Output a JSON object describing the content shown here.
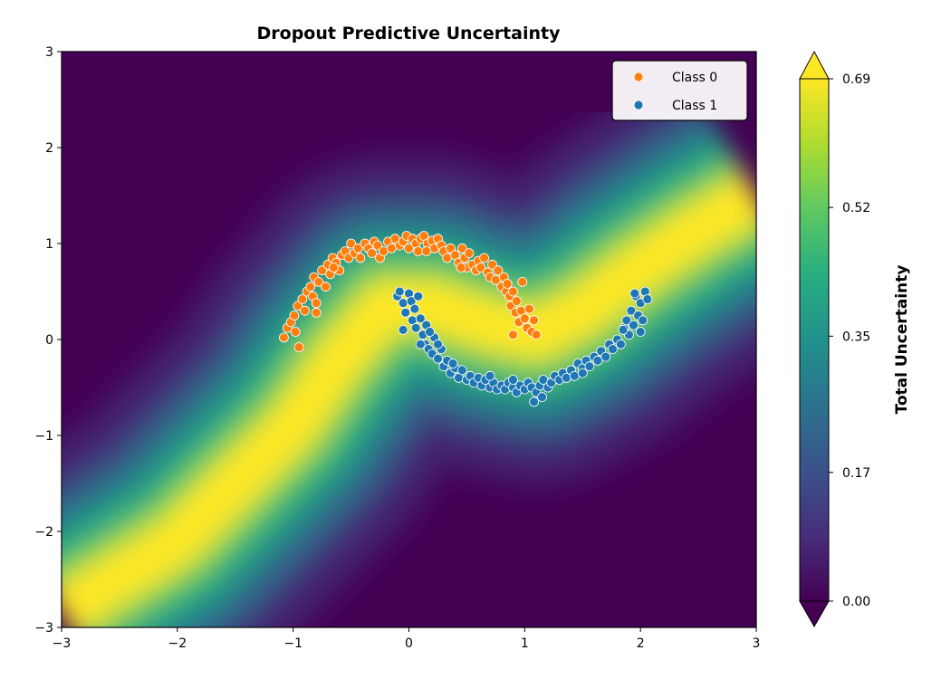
{
  "chart_data": {
    "type": "heatmap",
    "title": "Dropout Predictive Uncertainty",
    "xlabel": "",
    "ylabel": "",
    "xlim": [
      -3,
      3
    ],
    "ylim": [
      -3,
      3
    ],
    "x_ticks": [
      -3,
      -2,
      -1,
      0,
      1,
      2,
      3
    ],
    "y_ticks": [
      -3,
      -2,
      -1,
      0,
      1,
      2,
      3
    ],
    "x_tick_labels": [
      "−3",
      "−2",
      "−1",
      "0",
      "1",
      "2",
      "3"
    ],
    "y_tick_labels": [
      "−3",
      "−2",
      "−1",
      "0",
      "1",
      "2",
      "3"
    ],
    "grid": false,
    "colormap": "viridis",
    "colorbar": {
      "label": "Total Uncertainty",
      "range": [
        0.0,
        0.69
      ],
      "ticks": [
        0.0,
        0.17,
        0.35,
        0.52,
        0.69
      ],
      "tick_labels": [
        "0.00",
        "0.17",
        "0.35",
        "0.52",
        "0.69"
      ],
      "extend": "both"
    },
    "background": {
      "description_of_field": "high uncertainty ridge along decision boundary",
      "ridge_points": [
        [
          -3.0,
          -2.85
        ],
        [
          -2.0,
          -2.1
        ],
        [
          -1.0,
          -0.9
        ],
        [
          -0.6,
          -0.2
        ],
        [
          -0.2,
          0.35
        ],
        [
          0.2,
          0.35
        ],
        [
          0.7,
          0.15
        ],
        [
          1.1,
          0.05
        ],
        [
          1.5,
          0.3
        ],
        [
          2.0,
          0.75
        ],
        [
          2.5,
          1.15
        ],
        [
          3.0,
          1.5
        ]
      ]
    },
    "legend": {
      "placement": "top-right",
      "entries": [
        {
          "label": "Class 0",
          "color": "#ff7f0e"
        },
        {
          "label": "Class 1",
          "color": "#1f77b4"
        }
      ]
    },
    "series": [
      {
        "name": "Class 0",
        "color": "#ff7f0e",
        "points": [
          [
            -1.08,
            0.02
          ],
          [
            -1.05,
            0.12
          ],
          [
            -1.02,
            0.18
          ],
          [
            -0.98,
            0.08
          ],
          [
            -0.95,
            -0.08
          ],
          [
            -0.99,
            0.25
          ],
          [
            -0.96,
            0.35
          ],
          [
            -0.92,
            0.42
          ],
          [
            -0.9,
            0.3
          ],
          [
            -0.88,
            0.5
          ],
          [
            -0.85,
            0.55
          ],
          [
            -0.83,
            0.45
          ],
          [
            -0.82,
            0.65
          ],
          [
            -0.8,
            0.38
          ],
          [
            -0.78,
            0.6
          ],
          [
            -0.75,
            0.72
          ],
          [
            -0.72,
            0.55
          ],
          [
            -0.7,
            0.78
          ],
          [
            -0.68,
            0.68
          ],
          [
            -0.66,
            0.85
          ],
          [
            -0.63,
            0.8
          ],
          [
            -0.6,
            0.72
          ],
          [
            -0.58,
            0.88
          ],
          [
            -0.55,
            0.92
          ],
          [
            -0.52,
            0.85
          ],
          [
            -0.5,
            1.0
          ],
          [
            -0.47,
            0.9
          ],
          [
            -0.44,
            0.95
          ],
          [
            -0.42,
            0.85
          ],
          [
            -0.38,
            1.0
          ],
          [
            -0.35,
            0.95
          ],
          [
            -0.32,
            0.9
          ],
          [
            -0.3,
            1.02
          ],
          [
            -0.27,
            0.98
          ],
          [
            -0.25,
            0.85
          ],
          [
            -0.22,
            0.92
          ],
          [
            -0.18,
            1.02
          ],
          [
            -0.15,
            0.95
          ],
          [
            -0.12,
            1.05
          ],
          [
            -0.08,
            0.98
          ],
          [
            -0.05,
            1.02
          ],
          [
            -0.02,
            1.08
          ],
          [
            0.0,
            0.95
          ],
          [
            0.03,
            1.05
          ],
          [
            0.06,
            1.0
          ],
          [
            0.08,
            0.92
          ],
          [
            0.1,
            1.05
          ],
          [
            0.13,
            1.08
          ],
          [
            0.16,
            1.0
          ],
          [
            0.2,
            1.03
          ],
          [
            0.22,
            0.95
          ],
          [
            0.25,
            1.05
          ],
          [
            0.28,
            0.98
          ],
          [
            0.3,
            0.92
          ],
          [
            0.33,
            0.85
          ],
          [
            0.36,
            0.95
          ],
          [
            0.4,
            0.88
          ],
          [
            0.43,
            0.8
          ],
          [
            0.46,
            0.95
          ],
          [
            0.48,
            0.85
          ],
          [
            0.5,
            0.75
          ],
          [
            0.52,
            0.9
          ],
          [
            0.55,
            0.78
          ],
          [
            0.58,
            0.72
          ],
          [
            0.6,
            0.82
          ],
          [
            0.62,
            0.75
          ],
          [
            0.65,
            0.85
          ],
          [
            0.68,
            0.7
          ],
          [
            0.7,
            0.65
          ],
          [
            0.72,
            0.78
          ],
          [
            0.75,
            0.62
          ],
          [
            0.77,
            0.72
          ],
          [
            0.8,
            0.55
          ],
          [
            0.82,
            0.65
          ],
          [
            0.84,
            0.5
          ],
          [
            0.85,
            0.58
          ],
          [
            0.87,
            0.45
          ],
          [
            0.88,
            0.35
          ],
          [
            0.9,
            0.5
          ],
          [
            0.92,
            0.28
          ],
          [
            0.93,
            0.4
          ],
          [
            0.95,
            0.18
          ],
          [
            0.97,
            0.3
          ],
          [
            0.98,
            0.6
          ],
          [
            1.0,
            0.22
          ],
          [
            1.02,
            0.12
          ],
          [
            1.04,
            0.32
          ],
          [
            1.06,
            0.08
          ],
          [
            1.08,
            0.2
          ],
          [
            1.1,
            0.05
          ],
          [
            -0.8,
            0.28
          ],
          [
            0.45,
            0.75
          ],
          [
            -0.65,
            0.75
          ],
          [
            0.15,
            0.92
          ],
          [
            0.9,
            0.05
          ]
        ]
      },
      {
        "name": "Class 1",
        "color": "#1f77b4",
        "points": [
          [
            -0.1,
            0.45
          ],
          [
            -0.08,
            0.5
          ],
          [
            -0.05,
            0.38
          ],
          [
            -0.03,
            0.28
          ],
          [
            0.0,
            0.48
          ],
          [
            0.02,
            0.4
          ],
          [
            0.03,
            0.2
          ],
          [
            0.05,
            0.32
          ],
          [
            0.06,
            0.12
          ],
          [
            0.08,
            0.45
          ],
          [
            0.1,
            0.22
          ],
          [
            0.12,
            0.05
          ],
          [
            0.14,
            -0.05
          ],
          [
            0.15,
            0.15
          ],
          [
            0.17,
            -0.1
          ],
          [
            0.2,
            -0.15
          ],
          [
            0.22,
            0.02
          ],
          [
            0.25,
            -0.2
          ],
          [
            0.28,
            -0.1
          ],
          [
            0.3,
            -0.28
          ],
          [
            0.33,
            -0.22
          ],
          [
            0.36,
            -0.35
          ],
          [
            0.4,
            -0.3
          ],
          [
            0.43,
            -0.4
          ],
          [
            0.46,
            -0.32
          ],
          [
            0.5,
            -0.42
          ],
          [
            0.53,
            -0.38
          ],
          [
            0.56,
            -0.45
          ],
          [
            0.6,
            -0.4
          ],
          [
            0.63,
            -0.48
          ],
          [
            0.66,
            -0.42
          ],
          [
            0.7,
            -0.5
          ],
          [
            0.73,
            -0.45
          ],
          [
            0.76,
            -0.52
          ],
          [
            0.8,
            -0.48
          ],
          [
            0.83,
            -0.52
          ],
          [
            0.86,
            -0.45
          ],
          [
            0.9,
            -0.5
          ],
          [
            0.93,
            -0.55
          ],
          [
            0.96,
            -0.48
          ],
          [
            1.0,
            -0.52
          ],
          [
            1.03,
            -0.45
          ],
          [
            1.06,
            -0.5
          ],
          [
            1.08,
            -0.65
          ],
          [
            1.1,
            -0.55
          ],
          [
            1.13,
            -0.48
          ],
          [
            1.16,
            -0.42
          ],
          [
            1.2,
            -0.5
          ],
          [
            1.23,
            -0.45
          ],
          [
            1.26,
            -0.38
          ],
          [
            1.3,
            -0.42
          ],
          [
            1.33,
            -0.35
          ],
          [
            1.36,
            -0.4
          ],
          [
            1.4,
            -0.32
          ],
          [
            1.43,
            -0.38
          ],
          [
            1.46,
            -0.25
          ],
          [
            1.5,
            -0.3
          ],
          [
            1.53,
            -0.22
          ],
          [
            1.56,
            -0.28
          ],
          [
            1.6,
            -0.18
          ],
          [
            1.63,
            -0.22
          ],
          [
            1.66,
            -0.12
          ],
          [
            1.7,
            -0.18
          ],
          [
            1.73,
            -0.05
          ],
          [
            1.76,
            -0.1
          ],
          [
            1.8,
            0.0
          ],
          [
            1.83,
            -0.05
          ],
          [
            1.86,
            0.12
          ],
          [
            1.88,
            0.2
          ],
          [
            1.9,
            0.05
          ],
          [
            1.92,
            0.3
          ],
          [
            1.94,
            0.15
          ],
          [
            1.96,
            0.45
          ],
          [
            1.98,
            0.25
          ],
          [
            2.0,
            0.38
          ],
          [
            2.02,
            0.2
          ],
          [
            2.04,
            0.5
          ],
          [
            2.06,
            0.42
          ],
          [
            2.0,
            0.08
          ],
          [
            1.95,
            0.48
          ],
          [
            -0.05,
            0.1
          ],
          [
            0.1,
            -0.05
          ],
          [
            0.18,
            0.08
          ],
          [
            0.38,
            -0.25
          ],
          [
            0.7,
            -0.38
          ],
          [
            1.15,
            -0.6
          ],
          [
            1.5,
            -0.35
          ],
          [
            1.85,
            0.1
          ],
          [
            0.25,
            -0.05
          ],
          [
            0.9,
            -0.42
          ]
        ]
      }
    ]
  }
}
